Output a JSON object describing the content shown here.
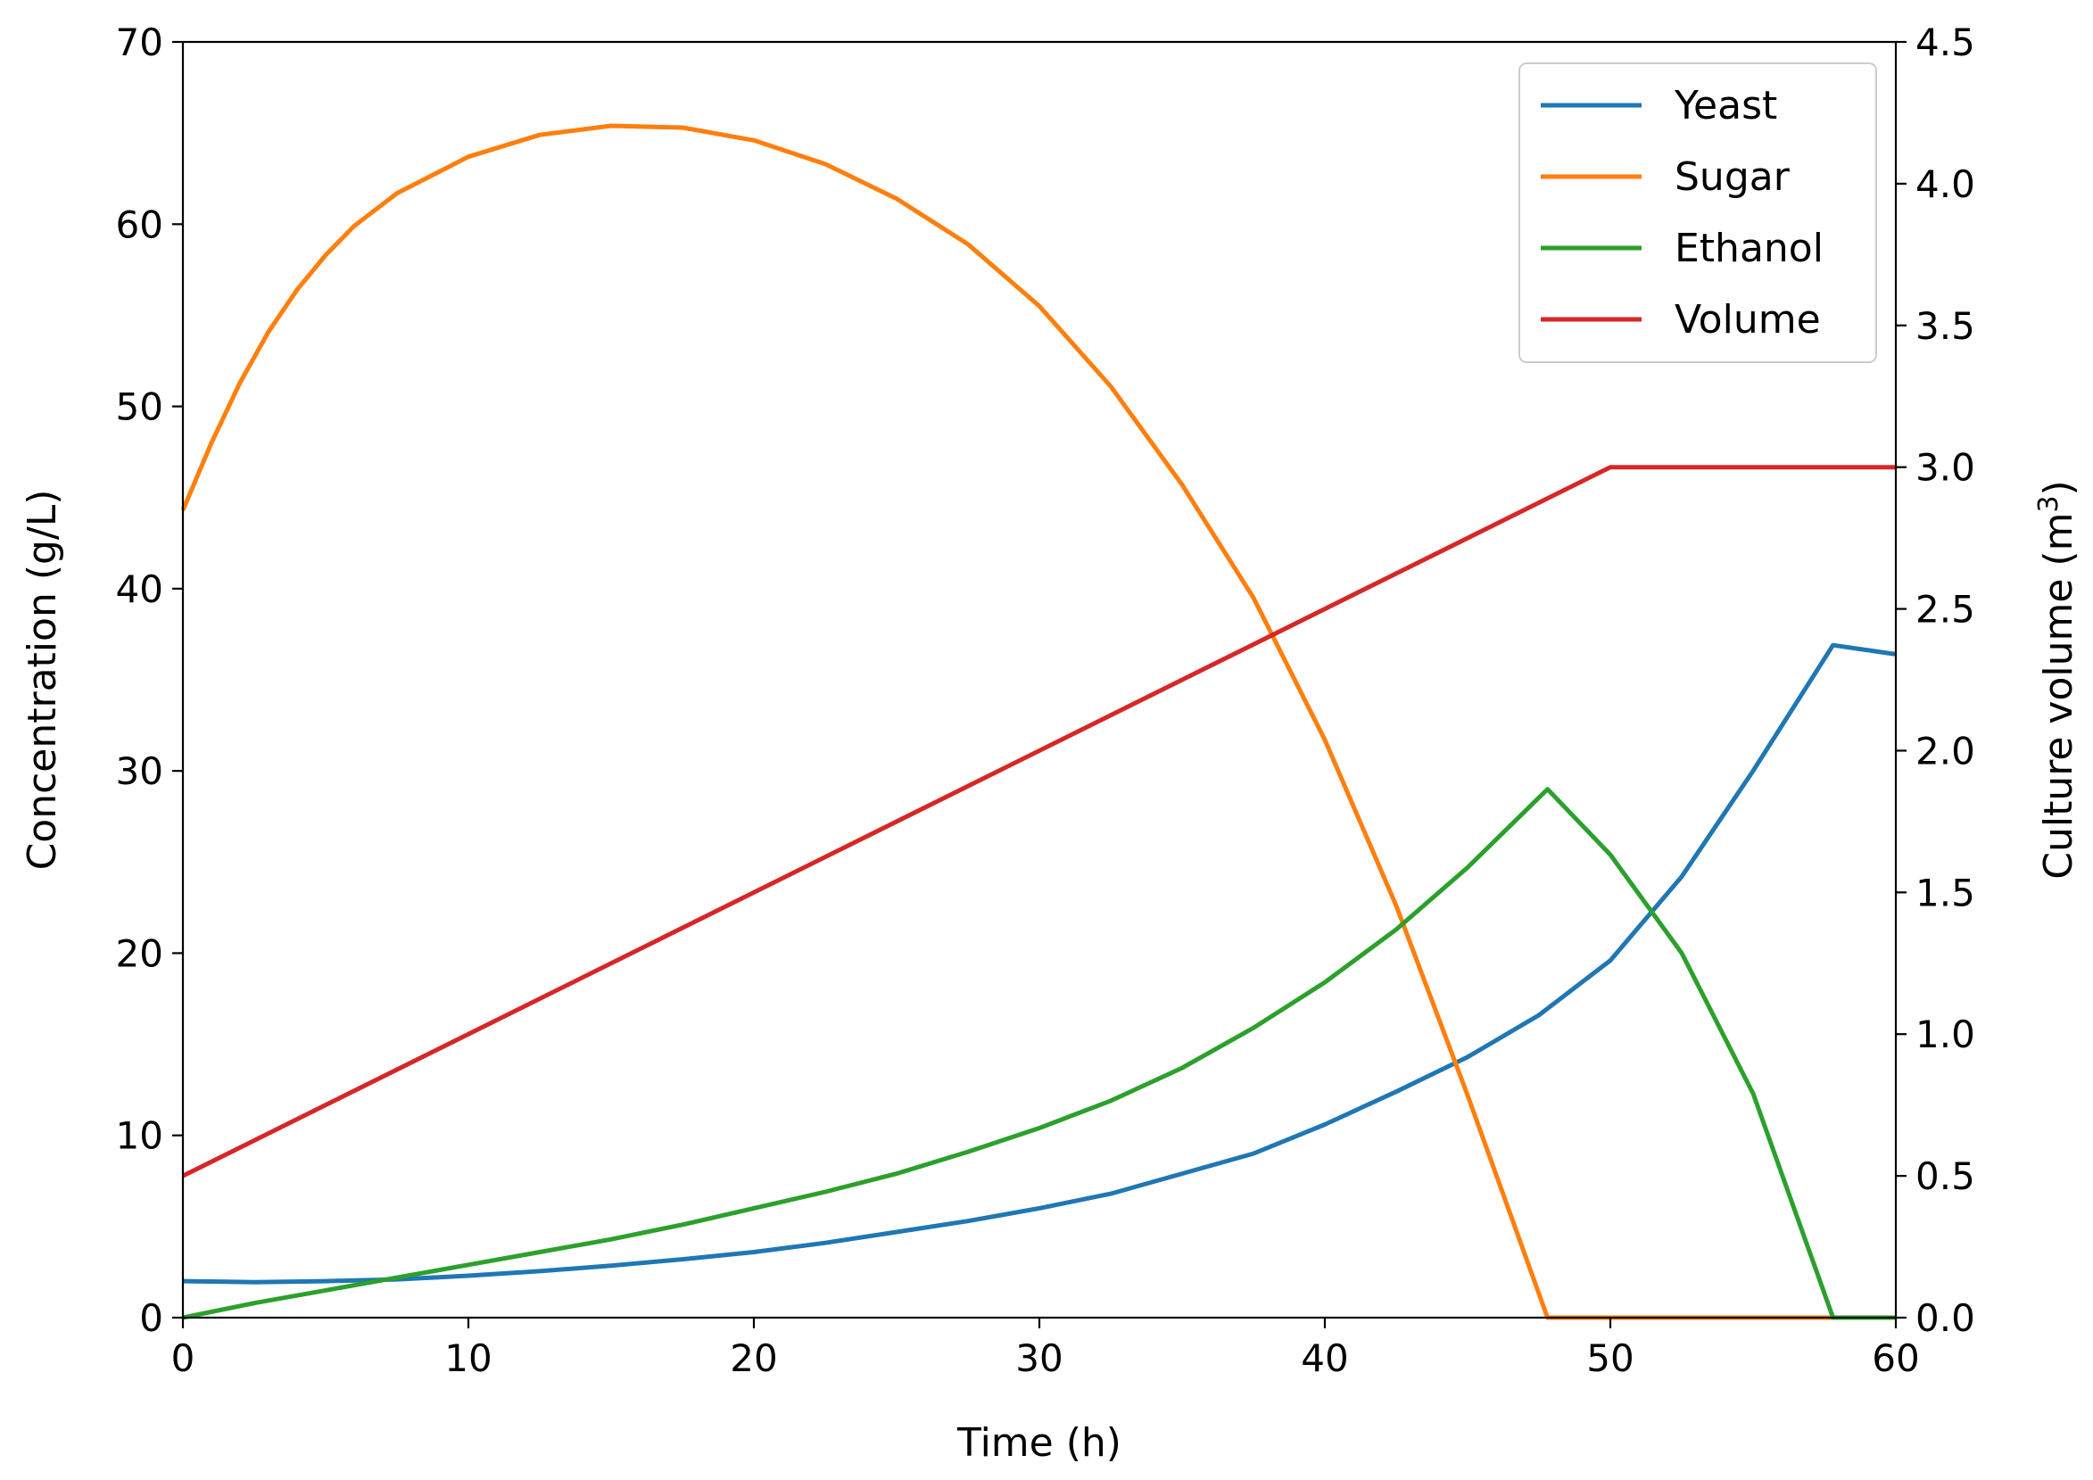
{
  "chart_data": {
    "type": "line",
    "title": "",
    "xlabel": "Time (h)",
    "ylabel": "Concentration (g/L)",
    "ylabel_right": "Culture volume (m",
    "ylabel_right_unit_sup": "3",
    "ylabel_right_close": ")",
    "xlim": [
      0,
      60
    ],
    "ylim": [
      0,
      70
    ],
    "ylim_right": [
      0,
      4.5
    ],
    "xticks": [
      "0",
      "10",
      "20",
      "30",
      "40",
      "50",
      "60"
    ],
    "yticks": [
      "0",
      "10",
      "20",
      "30",
      "40",
      "50",
      "60",
      "70"
    ],
    "yticks_right": [
      "0.0",
      "0.5",
      "1.0",
      "1.5",
      "2.0",
      "2.5",
      "3.0",
      "3.5",
      "4.0",
      "4.5"
    ],
    "legend_position": "top-right",
    "series": [
      {
        "name": "Yeast",
        "color": "#1f77b4",
        "axis": "left",
        "x": [
          0,
          2.5,
          5,
          7.5,
          10,
          12.5,
          15,
          17.5,
          20,
          22.5,
          25,
          27.5,
          30,
          32.5,
          35,
          37.5,
          40,
          42.5,
          45,
          47.5,
          50,
          52.5,
          55,
          57.8,
          60
        ],
        "y": [
          2.0,
          1.95,
          2.0,
          2.1,
          2.3,
          2.55,
          2.85,
          3.2,
          3.6,
          4.1,
          4.7,
          5.3,
          6.0,
          6.8,
          7.9,
          9.0,
          10.6,
          12.4,
          14.3,
          16.6,
          19.6,
          24.2,
          30.0,
          36.9,
          36.4
        ]
      },
      {
        "name": "Sugar",
        "color": "#ff7f0e",
        "axis": "left",
        "x": [
          0,
          1,
          2,
          3,
          4,
          5,
          6,
          7.5,
          10,
          12.5,
          15,
          17.5,
          20,
          22.5,
          25,
          27.5,
          30,
          32.5,
          35,
          37.5,
          40,
          42.5,
          45,
          47.8,
          50,
          55,
          60
        ],
        "y": [
          44.3,
          48.0,
          51.3,
          54.1,
          56.4,
          58.3,
          59.9,
          61.7,
          63.7,
          64.9,
          65.4,
          65.3,
          64.6,
          63.3,
          61.4,
          58.9,
          55.5,
          51.1,
          45.7,
          39.5,
          31.7,
          22.6,
          12.2,
          0,
          0,
          0,
          0
        ]
      },
      {
        "name": "Ethanol",
        "color": "#2ca02c",
        "axis": "left",
        "x": [
          0,
          2.5,
          5,
          7.5,
          10,
          12.5,
          15,
          17.5,
          20,
          22.5,
          25,
          27.5,
          30,
          32.5,
          35,
          37.5,
          40,
          42.5,
          45,
          47.8,
          50,
          52.5,
          55,
          57.8,
          60
        ],
        "y": [
          0,
          0.8,
          1.5,
          2.2,
          2.9,
          3.6,
          4.3,
          5.1,
          6.0,
          6.9,
          7.9,
          9.1,
          10.4,
          11.9,
          13.7,
          15.9,
          18.4,
          21.3,
          24.7,
          29.0,
          25.4,
          20.0,
          12.3,
          0,
          0
        ]
      },
      {
        "name": "Volume",
        "color": "#d62728",
        "axis": "right",
        "x": [
          0,
          50,
          60
        ],
        "y": [
          0.5,
          3.0,
          3.0
        ]
      }
    ]
  }
}
